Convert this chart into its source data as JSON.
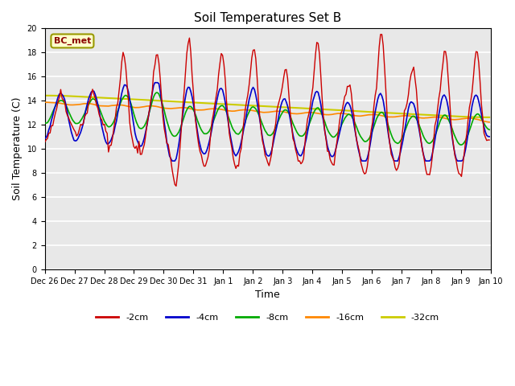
{
  "title": "Soil Temperatures Set B",
  "xlabel": "Time",
  "ylabel": "Soil Temperature (C)",
  "ylim": [
    0,
    20
  ],
  "yticks": [
    0,
    2,
    4,
    6,
    8,
    10,
    12,
    14,
    16,
    18,
    20
  ],
  "xlim": [
    0,
    14
  ],
  "background_color": "#e8e8e8",
  "colors": {
    "d2": "#cc0000",
    "d4": "#0000cc",
    "d8": "#00aa00",
    "d16": "#ff8800",
    "d32": "#cccc00"
  },
  "series_labels": [
    "-2cm",
    "-4cm",
    "-8cm",
    "-16cm",
    "-32cm"
  ],
  "tick_labels": [
    "Dec 26",
    "Dec 27",
    "Dec 28",
    "Dec 29",
    "Dec 30",
    "Dec 31",
    "Jan 1",
    "Jan 2",
    "Jan 3",
    "Jan 4",
    "Jan 5",
    "Jan 6",
    "Jan 7",
    "Jan 8",
    "Jan 9",
    "Jan 10"
  ]
}
